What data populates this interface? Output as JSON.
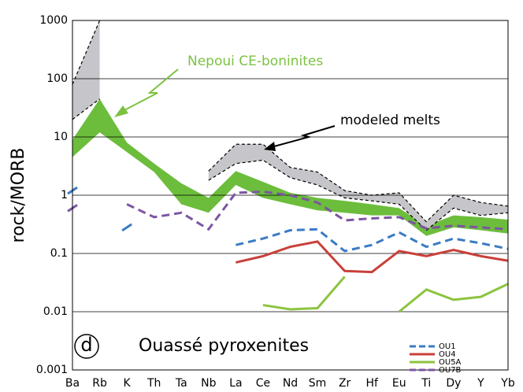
{
  "chart_data": {
    "type": "spider",
    "y_label": "rock/MORB",
    "panel_label": "d",
    "annotation": "Ouassé pyroxenites",
    "log_scale": true,
    "grid": true,
    "legend": "lower right",
    "categories": [
      "Ba",
      "Rb",
      "K",
      "Th",
      "Ta",
      "Nb",
      "La",
      "Ce",
      "Nd",
      "Sm",
      "Zr",
      "Hf",
      "Eu",
      "Ti",
      "Dy",
      "Y",
      "Yb"
    ],
    "ylim": [
      0.001,
      1000
    ],
    "yticks": [
      0.001,
      0.01,
      0.1,
      1,
      10,
      100,
      1000
    ],
    "bands": [
      {
        "name": "Nepoui CE-boninites",
        "color": "#6cbd3c",
        "low": [
          4.5,
          12,
          5.5,
          2.5,
          0.7,
          0.5,
          1.5,
          0.9,
          0.7,
          0.55,
          0.5,
          0.45,
          0.45,
          0.2,
          0.28,
          0.25,
          0.22
        ],
        "high": [
          9,
          45,
          8,
          3.5,
          1.6,
          0.9,
          2.6,
          1.7,
          1.1,
          0.9,
          0.8,
          0.7,
          0.6,
          0.3,
          0.45,
          0.42,
          0.38
        ]
      },
      {
        "name": "modeled melts",
        "color": "#c6c6ca",
        "low": [
          20,
          45,
          null,
          null,
          null,
          1.8,
          3.5,
          4,
          2,
          1.5,
          0.9,
          0.8,
          0.7,
          0.25,
          0.6,
          0.45,
          0.5
        ],
        "high": [
          80,
          1000,
          null,
          null,
          null,
          2.6,
          7.5,
          7.5,
          3,
          2.5,
          1.2,
          1.0,
          1.1,
          0.35,
          1.0,
          0.75,
          0.65
        ]
      }
    ],
    "series": [
      {
        "name": "OU1",
        "color": "#3b7bc4",
        "values": [
          1.2,
          null,
          0.28,
          null,
          null,
          null,
          0.14,
          0.18,
          0.25,
          0.26,
          0.11,
          0.14,
          0.23,
          0.13,
          0.18,
          0.15,
          0.12
        ]
      },
      {
        "name": "OU4",
        "color": "#c8403a",
        "values": [
          null,
          null,
          null,
          null,
          null,
          null,
          0.07,
          0.09,
          0.13,
          0.16,
          0.05,
          0.048,
          0.11,
          0.09,
          0.115,
          0.09,
          0.075
        ]
      },
      {
        "name": "OU5A",
        "color": "#8cc43f",
        "values": [
          null,
          null,
          null,
          null,
          null,
          null,
          null,
          0.013,
          0.011,
          0.0115,
          0.04,
          null,
          0.01,
          0.024,
          0.016,
          0.018,
          0.03
        ]
      },
      {
        "name": "OU7B",
        "color": "#7d55a3",
        "values": [
          0.6,
          null,
          0.7,
          0.42,
          0.5,
          0.26,
          1.1,
          1.15,
          1.0,
          0.75,
          0.37,
          0.4,
          0.42,
          0.27,
          0.3,
          0.28,
          0.26
        ]
      }
    ]
  }
}
